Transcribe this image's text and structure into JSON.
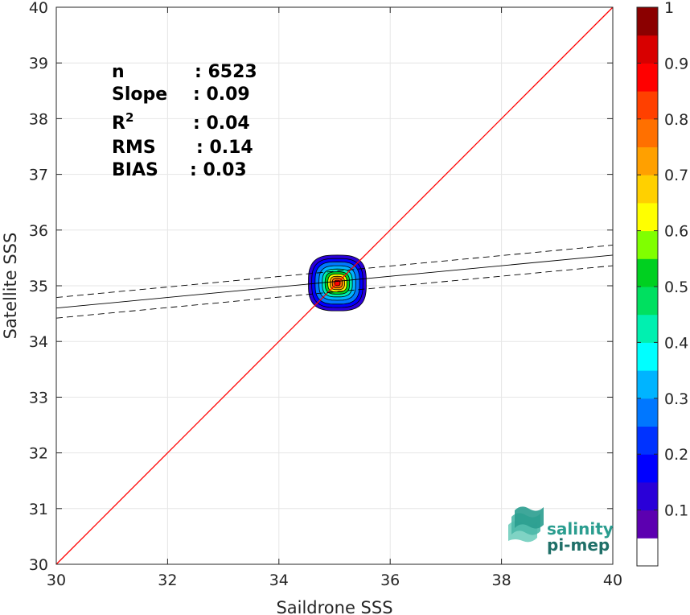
{
  "chart_data": {
    "type": "scatter",
    "subtype": "density-contour",
    "xlabel": "Saildrone SSS",
    "ylabel": "Satellite SSS",
    "xlim": [
      30,
      40
    ],
    "ylim": [
      30,
      40
    ],
    "xticks": [
      "30",
      "32",
      "34",
      "36",
      "38",
      "40"
    ],
    "yticks": [
      "30",
      "31",
      "32",
      "33",
      "34",
      "35",
      "36",
      "37",
      "38",
      "39",
      "40"
    ],
    "grid": true,
    "stats": [
      {
        "label": "n",
        "value": ": 6523"
      },
      {
        "label": "Slope",
        "value": ": 0.09"
      },
      {
        "label": "R",
        "sup": "2",
        "value": ": 0.04"
      },
      {
        "label": "RMS",
        "value": ": 0.14"
      },
      {
        "label": "BIAS",
        "value": ": 0.03"
      }
    ],
    "identity_line": {
      "from": [
        30,
        30
      ],
      "to": [
        40,
        40
      ],
      "color": "#ff0000"
    },
    "fit_line": {
      "from": [
        30,
        34.6
      ],
      "to": [
        40,
        35.55
      ],
      "color": "#000000"
    },
    "fit_bounds": [
      {
        "from": [
          30,
          34.79
        ],
        "to": [
          40,
          35.73
        ]
      },
      {
        "from": [
          30,
          34.42
        ],
        "to": [
          40,
          35.36
        ]
      }
    ],
    "density_center": [
      35.05,
      35.05
    ],
    "density_levels": [
      {
        "level": 0.05,
        "rx": 0.52,
        "ry": 0.5
      },
      {
        "level": 0.1,
        "rx": 0.46,
        "ry": 0.44
      },
      {
        "level": 0.2,
        "rx": 0.4,
        "ry": 0.38
      },
      {
        "level": 0.3,
        "rx": 0.33,
        "ry": 0.31
      },
      {
        "level": 0.4,
        "rx": 0.27,
        "ry": 0.25
      },
      {
        "level": 0.5,
        "rx": 0.22,
        "ry": 0.2
      },
      {
        "level": 0.6,
        "rx": 0.17,
        "ry": 0.16
      },
      {
        "level": 0.7,
        "rx": 0.13,
        "ry": 0.12
      },
      {
        "level": 0.8,
        "rx": 0.09,
        "ry": 0.085
      },
      {
        "level": 0.9,
        "rx": 0.05,
        "ry": 0.05
      }
    ],
    "colorbar": {
      "ticks": [
        "0.1",
        "0.2",
        "0.3",
        "0.4",
        "0.5",
        "0.6",
        "0.7",
        "0.8",
        "0.9",
        "1"
      ],
      "range": [
        0,
        1
      ],
      "colors": [
        "#5c00b0",
        "#2a00d8",
        "#0000ff",
        "#0033ff",
        "#0077ff",
        "#00b4ff",
        "#00ffff",
        "#00f0b0",
        "#00e060",
        "#00d020",
        "#80ff00",
        "#ffff00",
        "#ffd000",
        "#ffa000",
        "#ff7000",
        "#ff4000",
        "#ff0000",
        "#d80000",
        "#8b0000"
      ]
    }
  },
  "logo": {
    "line1": "salinity",
    "line2": "pi-mep",
    "line1_color": "#2a9d8f",
    "line2_color": "#1f6f68"
  }
}
